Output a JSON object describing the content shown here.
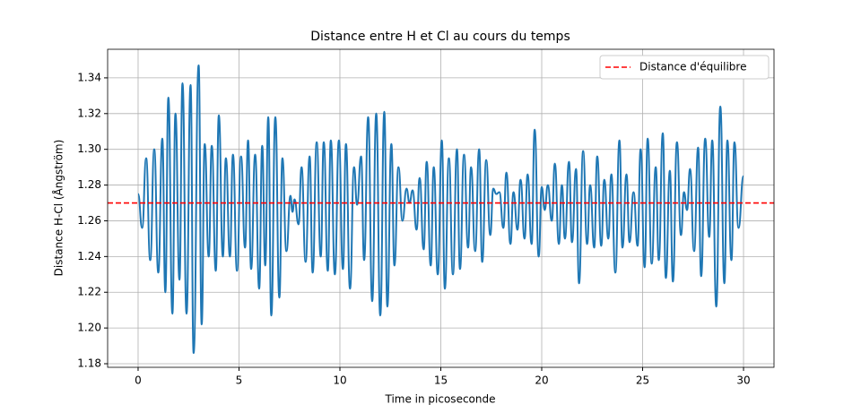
{
  "chart_data": {
    "type": "line",
    "title": "Distance entre H et Cl au cours du temps",
    "xlabel": "Time in picoseconde",
    "ylabel": "Distance H-Cl (Ångström)",
    "x": [
      0,
      0.2,
      0.4,
      0.6,
      0.8,
      1.0,
      1.2,
      1.35,
      1.5,
      1.7,
      1.85,
      2.05,
      2.2,
      2.4,
      2.6,
      2.75,
      3.0,
      3.15,
      3.3,
      3.5,
      3.65,
      3.85,
      4.0,
      4.2,
      4.35,
      4.55,
      4.7,
      4.9,
      5.1,
      5.3,
      5.45,
      5.6,
      5.8,
      6.0,
      6.15,
      6.3,
      6.45,
      6.6,
      6.8,
      7.0,
      7.15,
      7.35,
      7.55,
      7.65,
      7.75,
      7.95,
      8.1,
      8.3,
      8.5,
      8.65,
      8.85,
      9.05,
      9.2,
      9.4,
      9.55,
      9.75,
      9.95,
      10.15,
      10.3,
      10.5,
      10.7,
      10.85,
      11.05,
      11.2,
      11.4,
      11.6,
      11.8,
      12.0,
      12.2,
      12.35,
      12.55,
      12.7,
      12.9,
      13.1,
      13.3,
      13.45,
      13.6,
      13.8,
      13.95,
      14.15,
      14.3,
      14.5,
      14.65,
      14.85,
      15.05,
      15.2,
      15.4,
      15.6,
      15.8,
      15.95,
      16.15,
      16.35,
      16.5,
      16.7,
      16.9,
      17.05,
      17.25,
      17.45,
      17.6,
      17.75,
      17.9,
      18.1,
      18.25,
      18.45,
      18.6,
      18.8,
      18.95,
      19.15,
      19.3,
      19.5,
      19.65,
      19.85,
      20.0,
      20.15,
      20.3,
      20.5,
      20.65,
      20.85,
      21.0,
      21.15,
      21.35,
      21.5,
      21.7,
      21.85,
      22.05,
      22.25,
      22.4,
      22.6,
      22.75,
      22.95,
      23.1,
      23.3,
      23.45,
      23.65,
      23.85,
      24.0,
      24.2,
      24.35,
      24.55,
      24.75,
      24.9,
      25.1,
      25.25,
      25.45,
      25.65,
      25.8,
      26.0,
      26.15,
      26.35,
      26.5,
      26.7,
      26.9,
      27.05,
      27.2,
      27.35,
      27.55,
      27.75,
      27.9,
      28.1,
      28.3,
      28.45,
      28.65,
      28.85,
      29.05,
      29.2,
      29.4,
      29.55,
      29.75,
      30.0
    ],
    "series": [
      {
        "color": "#1f77b4",
        "values": [
          1.275,
          1.256,
          1.295,
          1.238,
          1.3,
          1.231,
          1.306,
          1.22,
          1.329,
          1.208,
          1.32,
          1.227,
          1.337,
          1.208,
          1.336,
          1.186,
          1.347,
          1.202,
          1.303,
          1.24,
          1.302,
          1.232,
          1.319,
          1.24,
          1.295,
          1.24,
          1.297,
          1.232,
          1.296,
          1.245,
          1.305,
          1.233,
          1.297,
          1.222,
          1.302,
          1.235,
          1.318,
          1.207,
          1.318,
          1.217,
          1.295,
          1.243,
          1.274,
          1.265,
          1.272,
          1.258,
          1.29,
          1.237,
          1.296,
          1.231,
          1.304,
          1.24,
          1.304,
          1.232,
          1.305,
          1.23,
          1.305,
          1.233,
          1.303,
          1.222,
          1.29,
          1.269,
          1.296,
          1.238,
          1.318,
          1.215,
          1.32,
          1.207,
          1.321,
          1.212,
          1.303,
          1.235,
          1.29,
          1.26,
          1.278,
          1.27,
          1.277,
          1.255,
          1.284,
          1.244,
          1.293,
          1.235,
          1.29,
          1.23,
          1.305,
          1.222,
          1.295,
          1.23,
          1.3,
          1.233,
          1.297,
          1.245,
          1.29,
          1.243,
          1.3,
          1.237,
          1.294,
          1.252,
          1.278,
          1.275,
          1.276,
          1.256,
          1.287,
          1.247,
          1.276,
          1.255,
          1.283,
          1.25,
          1.286,
          1.247,
          1.311,
          1.24,
          1.279,
          1.266,
          1.28,
          1.26,
          1.292,
          1.247,
          1.28,
          1.25,
          1.293,
          1.248,
          1.289,
          1.225,
          1.299,
          1.247,
          1.28,
          1.245,
          1.296,
          1.246,
          1.283,
          1.25,
          1.286,
          1.231,
          1.305,
          1.245,
          1.286,
          1.248,
          1.276,
          1.246,
          1.3,
          1.234,
          1.306,
          1.236,
          1.29,
          1.238,
          1.309,
          1.228,
          1.288,
          1.226,
          1.304,
          1.252,
          1.276,
          1.266,
          1.289,
          1.243,
          1.301,
          1.229,
          1.306,
          1.251,
          1.305,
          1.212,
          1.324,
          1.225,
          1.305,
          1.238,
          1.304,
          1.256,
          1.285
        ]
      }
    ],
    "reference_line": {
      "name": "Distance d'équilibre",
      "value": 1.27,
      "color": "#ff0000",
      "style": "dashed"
    },
    "xlim": [
      -1.51,
      31.51
    ],
    "xticks": [
      0,
      5,
      10,
      15,
      20,
      25,
      30
    ],
    "ylim": [
      1.178,
      1.356
    ],
    "yticks": [
      1.18,
      {
        "value": 1.2,
        "label": "1.20"
      },
      1.22,
      1.24,
      1.26,
      1.28,
      {
        "value": 1.3,
        "label": "1.30"
      },
      1.32,
      1.34
    ],
    "grid": true,
    "legend": "upper right"
  }
}
